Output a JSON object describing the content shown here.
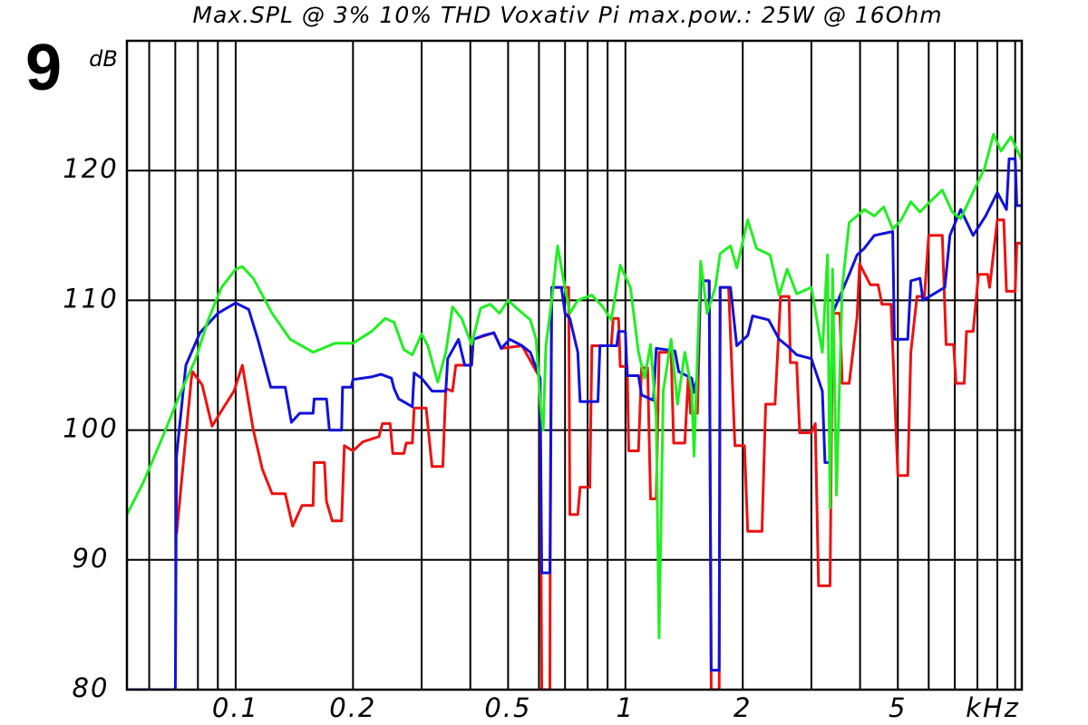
{
  "chart_data": {
    "type": "line",
    "figure_number": "9",
    "title": "Max.SPL @ 3% 10% THD Voxativ Pi  max.pow.: 25W @ 16Ohm",
    "y_label": "dB",
    "x_label": "kHz",
    "x_scale": "log",
    "grid": true,
    "xlim": [
      0.0526,
      10.4
    ],
    "ylim": [
      80,
      130
    ],
    "xticks": [
      0.1,
      0.2,
      0.5,
      1,
      2,
      5
    ],
    "xgrid": [
      0.06,
      0.07,
      0.08,
      0.09,
      0.1,
      0.2,
      0.3,
      0.4,
      0.5,
      0.6,
      0.7,
      0.8,
      0.9,
      1,
      2,
      3,
      4,
      5,
      6,
      7,
      8,
      9,
      10
    ],
    "yticks": [
      80,
      90,
      100,
      110,
      120
    ],
    "series": [
      {
        "color": "#ee1111",
        "x": [
          0.0705,
          0.077,
          0.0775,
          0.082,
          0.087,
          0.092,
          0.099,
          0.104,
          0.111,
          0.117,
          0.124,
          0.134,
          0.14,
          0.148,
          0.158,
          0.159,
          0.169,
          0.171,
          0.177,
          0.187,
          0.19,
          0.2,
          0.212,
          0.233,
          0.238,
          0.249,
          0.253,
          0.27,
          0.274,
          0.284,
          0.287,
          0.308,
          0.319,
          0.34,
          0.346,
          0.36,
          0.367,
          0.387,
          0.403,
          0.407,
          0.46,
          0.48,
          0.543,
          0.604,
          0.61,
          0.64,
          0.641,
          0.647,
          0.715,
          0.72,
          0.755,
          0.765,
          0.81,
          0.82,
          0.92,
          0.93,
          0.96,
          0.97,
          1.01,
          1.02,
          1.08,
          1.1,
          1.14,
          1.16,
          1.2,
          1.22,
          1.31,
          1.33,
          1.42,
          1.45,
          1.47,
          1.53,
          1.56,
          1.64,
          1.66,
          1.74,
          1.75,
          1.84,
          1.91,
          2.02,
          2.06,
          2.24,
          2.29,
          2.42,
          2.5,
          2.63,
          2.65,
          2.75,
          2.8,
          3.0,
          3.07,
          3.13,
          3.35,
          3.4,
          3.55,
          3.6,
          3.75,
          3.93,
          3.99,
          4.25,
          4.45,
          4.55,
          4.8,
          5.0,
          5.3,
          5.4,
          5.6,
          5.85,
          6.0,
          6.5,
          6.65,
          6.95,
          7.05,
          7.4,
          7.5,
          7.8,
          8.05,
          8.5,
          8.6,
          9.0,
          9.35,
          9.5,
          10.0,
          10.1,
          10.4
        ],
        "values": [
          92,
          104,
          104.5,
          103.5,
          100.3,
          101.5,
          103,
          105,
          100,
          97,
          95.1,
          95.1,
          92.6,
          94.2,
          94.2,
          97.5,
          97.5,
          94.5,
          93,
          93,
          98.8,
          98.4,
          99.1,
          99.5,
          100.5,
          100.5,
          98.2,
          98.2,
          99,
          99,
          101.7,
          101.7,
          97.2,
          97.2,
          103.2,
          103,
          105,
          105,
          105,
          107,
          107.5,
          106.3,
          106.5,
          104,
          80,
          80,
          89,
          111,
          111,
          93.5,
          93.5,
          95.6,
          95.6,
          106.5,
          106.5,
          108.6,
          108.6,
          104.9,
          104.9,
          98.4,
          98.4,
          104.8,
          104.8,
          94.7,
          94.7,
          106,
          106,
          99,
          99,
          104.2,
          101.3,
          101.3,
          111.5,
          111.5,
          80,
          80,
          111,
          111,
          98.8,
          98.8,
          92.2,
          92.2,
          102,
          102,
          110.3,
          110.3,
          105.2,
          105.2,
          99.8,
          99.8,
          100.5,
          88,
          88,
          109,
          109,
          103.6,
          103.6,
          108.7,
          112.8,
          111.2,
          111.2,
          109.7,
          109.7,
          96.5,
          96.5,
          106,
          110.3,
          110.3,
          115,
          115,
          106.6,
          106.6,
          103.6,
          103.6,
          107.6,
          107.6,
          112,
          112,
          111,
          116.2,
          116.2,
          110.7,
          110.7,
          114.4,
          114.4
        ]
      },
      {
        "color": "#1111dd",
        "x": [
          0.0526,
          0.07,
          0.0705,
          0.0745,
          0.081,
          0.09,
          0.1,
          0.108,
          0.114,
          0.123,
          0.134,
          0.139,
          0.146,
          0.158,
          0.159,
          0.171,
          0.174,
          0.187,
          0.188,
          0.198,
          0.2,
          0.223,
          0.236,
          0.251,
          0.255,
          0.262,
          0.284,
          0.287,
          0.3,
          0.319,
          0.346,
          0.35,
          0.373,
          0.387,
          0.403,
          0.407,
          0.433,
          0.46,
          0.48,
          0.505,
          0.543,
          0.57,
          0.604,
          0.61,
          0.64,
          0.647,
          0.685,
          0.7,
          0.72,
          0.755,
          0.765,
          0.85,
          0.86,
          0.95,
          0.96,
          1.0,
          1.01,
          1.08,
          1.1,
          1.18,
          1.2,
          1.34,
          1.37,
          1.48,
          1.5,
          1.53,
          1.56,
          1.64,
          1.66,
          1.74,
          1.75,
          1.86,
          1.93,
          2.06,
          2.12,
          2.33,
          2.48,
          2.6,
          2.75,
          3.0,
          3.2,
          3.25,
          3.35,
          3.4,
          3.75,
          3.93,
          4.1,
          4.35,
          4.85,
          4.9,
          5.3,
          5.4,
          5.7,
          5.8,
          6.6,
          6.8,
          7.25,
          7.8,
          8.4,
          9.0,
          9.5,
          9.65,
          10.0,
          10.1,
          10.4
        ],
        "values": [
          80,
          80,
          98,
          105,
          107.5,
          109,
          109.8,
          109.3,
          107,
          103.3,
          103.3,
          100.6,
          101.3,
          101.3,
          102.4,
          102.4,
          100,
          100,
          103.3,
          103.3,
          103.9,
          104.1,
          104.3,
          104,
          103.2,
          102.4,
          101.8,
          104.4,
          104,
          103,
          103,
          105.5,
          107,
          105,
          105,
          107,
          107.3,
          107.5,
          106.3,
          107,
          106.5,
          106,
          104,
          89,
          89,
          111,
          111,
          109,
          108.6,
          106,
          102.2,
          102.2,
          106.5,
          106.5,
          107.6,
          107.6,
          104.2,
          104.2,
          102.7,
          102.3,
          106.3,
          106.1,
          104.5,
          104,
          102.9,
          104.2,
          111.5,
          111.5,
          81.5,
          81.5,
          111,
          111,
          106.5,
          107.3,
          108.8,
          108.5,
          107,
          106.5,
          105.8,
          105.5,
          103,
          97.5,
          97.5,
          109,
          112,
          113.5,
          114,
          115,
          115.3,
          107,
          107,
          111.5,
          111.7,
          110,
          111,
          115,
          117,
          115,
          116.5,
          118.3,
          117,
          120.9,
          120.9,
          117.3,
          117.3
        ]
      },
      {
        "color": "#22ee22",
        "x": [
          0.0526,
          0.058,
          0.065,
          0.0725,
          0.079,
          0.085,
          0.092,
          0.1,
          0.104,
          0.111,
          0.124,
          0.138,
          0.158,
          0.18,
          0.2,
          0.223,
          0.242,
          0.255,
          0.27,
          0.284,
          0.3,
          0.311,
          0.33,
          0.346,
          0.36,
          0.38,
          0.403,
          0.425,
          0.45,
          0.475,
          0.5,
          0.53,
          0.57,
          0.59,
          0.605,
          0.615,
          0.625,
          0.647,
          0.67,
          0.69,
          0.72,
          0.755,
          0.82,
          0.875,
          0.92,
          0.97,
          1.03,
          1.08,
          1.12,
          1.16,
          1.2,
          1.22,
          1.25,
          1.31,
          1.36,
          1.42,
          1.48,
          1.5,
          1.56,
          1.62,
          1.7,
          1.75,
          1.86,
          1.93,
          2.06,
          2.17,
          2.35,
          2.48,
          2.6,
          2.75,
          3.0,
          3.2,
          3.3,
          3.35,
          3.4,
          3.48,
          3.6,
          3.75,
          3.93,
          4.1,
          4.35,
          4.6,
          4.85,
          5.1,
          5.4,
          5.7,
          6.0,
          6.5,
          6.9,
          7.25,
          7.65,
          8.35,
          8.8,
          9.2,
          9.75,
          10.4
        ],
        "values": [
          93.5,
          96,
          99.5,
          103,
          105.5,
          108.5,
          111,
          112.4,
          112.6,
          111.7,
          109,
          107,
          106,
          106.7,
          106.7,
          107.6,
          108.6,
          108.3,
          106.2,
          105.8,
          107.4,
          106.5,
          103.7,
          106,
          109.5,
          108.6,
          106.6,
          109.4,
          109.7,
          109,
          110,
          109.3,
          108.5,
          107,
          102,
          100,
          106.5,
          110,
          114.2,
          112,
          109,
          110,
          110.4,
          109.5,
          108.5,
          112.7,
          111,
          106,
          104,
          106.6,
          101,
          84,
          103,
          107,
          102,
          106,
          103,
          98,
          113,
          109,
          111,
          113.6,
          114.2,
          112.5,
          116.2,
          114,
          113.5,
          110.4,
          112.4,
          110.5,
          111,
          106,
          113.5,
          94,
          112.4,
          95,
          111,
          116,
          116.5,
          117,
          116.5,
          117.2,
          115.5,
          116.2,
          117.6,
          116.8,
          117.5,
          118.5,
          116.8,
          116.3,
          117.8,
          120.2,
          122.8,
          121.5,
          122.6,
          120.8
        ]
      }
    ]
  }
}
